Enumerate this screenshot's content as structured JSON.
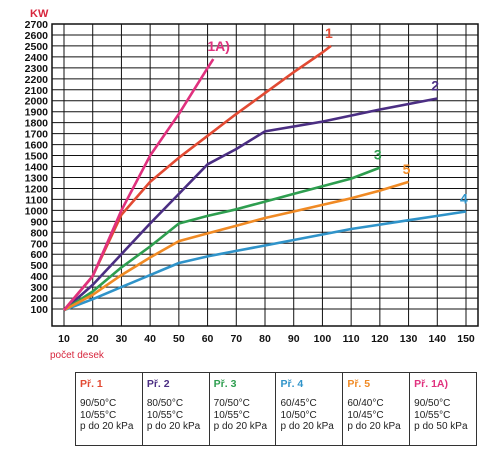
{
  "chart_data": {
    "type": "line",
    "unit_label": "KW",
    "xlabel": "počet desek",
    "ylabel": "",
    "xlim": [
      10,
      150
    ],
    "ylim": [
      100,
      2700
    ],
    "x_ticks": [
      10,
      20,
      30,
      40,
      50,
      60,
      70,
      80,
      90,
      100,
      110,
      120,
      130,
      140,
      150
    ],
    "y_ticks": [
      100,
      200,
      300,
      400,
      500,
      600,
      700,
      800,
      900,
      1000,
      1100,
      1200,
      1300,
      1400,
      1500,
      1600,
      1700,
      1800,
      1900,
      2000,
      2100,
      2200,
      2300,
      2400,
      2500,
      2600,
      2700
    ],
    "grid": true,
    "series": [
      {
        "name": "1",
        "color": "#e24a33",
        "points": [
          [
            10,
            90
          ],
          [
            20,
            400
          ],
          [
            30,
            960
          ],
          [
            40,
            1260
          ],
          [
            50,
            1480
          ],
          [
            60,
            1680
          ],
          [
            70,
            1880
          ],
          [
            80,
            2070
          ],
          [
            90,
            2260
          ],
          [
            100,
            2440
          ],
          [
            103,
            2500
          ]
        ]
      },
      {
        "name": "2",
        "color": "#4b2e83",
        "points": [
          [
            10,
            90
          ],
          [
            20,
            320
          ],
          [
            30,
            600
          ],
          [
            40,
            880
          ],
          [
            50,
            1150
          ],
          [
            60,
            1420
          ],
          [
            70,
            1560
          ],
          [
            80,
            1720
          ],
          [
            100,
            1810
          ],
          [
            120,
            1920
          ],
          [
            140,
            2020
          ]
        ]
      },
      {
        "name": "3",
        "color": "#2e9e4f",
        "points": [
          [
            10,
            90
          ],
          [
            20,
            260
          ],
          [
            30,
            480
          ],
          [
            40,
            670
          ],
          [
            50,
            880
          ],
          [
            60,
            950
          ],
          [
            70,
            1010
          ],
          [
            80,
            1080
          ],
          [
            90,
            1150
          ],
          [
            100,
            1220
          ],
          [
            110,
            1290
          ],
          [
            120,
            1390
          ]
        ]
      },
      {
        "name": "4",
        "color": "#2f93c9",
        "points": [
          [
            10,
            90
          ],
          [
            20,
            190
          ],
          [
            30,
            300
          ],
          [
            40,
            410
          ],
          [
            50,
            520
          ],
          [
            60,
            580
          ],
          [
            70,
            630
          ],
          [
            80,
            680
          ],
          [
            90,
            730
          ],
          [
            100,
            780
          ],
          [
            110,
            830
          ],
          [
            120,
            870
          ],
          [
            130,
            910
          ],
          [
            140,
            950
          ],
          [
            150,
            990
          ]
        ]
      },
      {
        "name": "5",
        "color": "#f08a24",
        "points": [
          [
            10,
            90
          ],
          [
            20,
            230
          ],
          [
            30,
            410
          ],
          [
            40,
            570
          ],
          [
            50,
            720
          ],
          [
            60,
            790
          ],
          [
            70,
            860
          ],
          [
            80,
            930
          ],
          [
            90,
            990
          ],
          [
            100,
            1050
          ],
          [
            110,
            1110
          ],
          [
            120,
            1180
          ],
          [
            130,
            1260
          ]
        ]
      },
      {
        "name": "1A)",
        "color": "#e0317e",
        "points": [
          [
            10,
            90
          ],
          [
            20,
            400
          ],
          [
            30,
            1000
          ],
          [
            40,
            1500
          ],
          [
            50,
            1880
          ],
          [
            60,
            2300
          ],
          [
            62,
            2380
          ]
        ]
      }
    ]
  },
  "legend": [
    {
      "title": "Př. 1",
      "color": "#e24a33",
      "line1": "90/50°C",
      "line2": "10/55°C",
      "line3": "p do 20 kPa"
    },
    {
      "title": "Př. 2",
      "color": "#4b2e83",
      "line1": "80/50°C",
      "line2": "10/55°C",
      "line3": "p do 20 kPa"
    },
    {
      "title": "Př. 3",
      "color": "#2e9e4f",
      "line1": "70/50°C",
      "line2": "10/55°C",
      "line3": "p do 20 kPa"
    },
    {
      "title": "Př. 4",
      "color": "#2f93c9",
      "line1": "60/45°C",
      "line2": "10/50°C",
      "line3": "p do 20 kPa"
    },
    {
      "title": "Př. 5",
      "color": "#f08a24",
      "line1": "60/40°C",
      "line2": "10/45°C",
      "line3": "p do 20 kPa"
    },
    {
      "title": "Př. 1A)",
      "color": "#e0317e",
      "line1": "90/50°C",
      "line2": "10/55°C",
      "line3": "p do 50 kPa"
    }
  ]
}
